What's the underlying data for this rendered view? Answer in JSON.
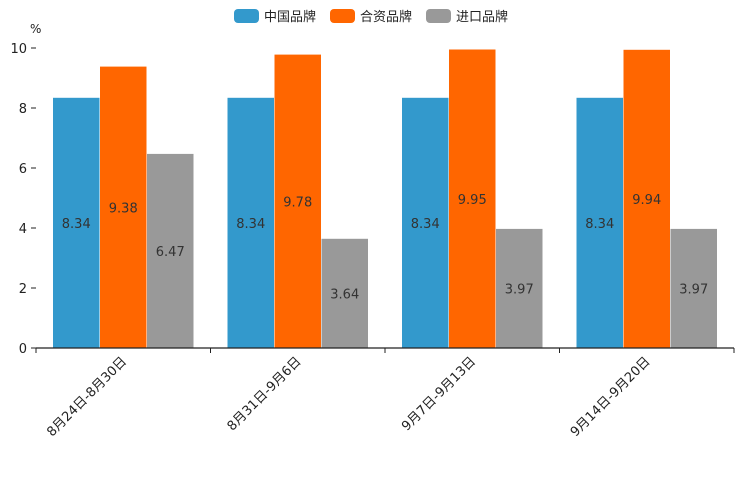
{
  "chart_data": {
    "type": "bar",
    "title": "",
    "unit_label": "%",
    "xlabel": "",
    "ylabel": "",
    "ylim": [
      0,
      10
    ],
    "yticks": [
      0,
      2,
      4,
      6,
      8,
      10
    ],
    "categories": [
      "8月24日-8月30日",
      "8月31日-9月6日",
      "9月7日-9月13日",
      "9月14日-9月20日"
    ],
    "series": [
      {
        "name": "中国品牌",
        "color": "#3399cc",
        "values": [
          8.34,
          8.34,
          8.34,
          8.34
        ]
      },
      {
        "name": "合资品牌",
        "color": "#ff6600",
        "values": [
          9.38,
          9.78,
          9.95,
          9.94
        ]
      },
      {
        "name": "进口品牌",
        "color": "#999999",
        "values": [
          6.47,
          3.64,
          3.97,
          3.97
        ]
      }
    ],
    "legend_position": "top-center",
    "grid": false
  }
}
